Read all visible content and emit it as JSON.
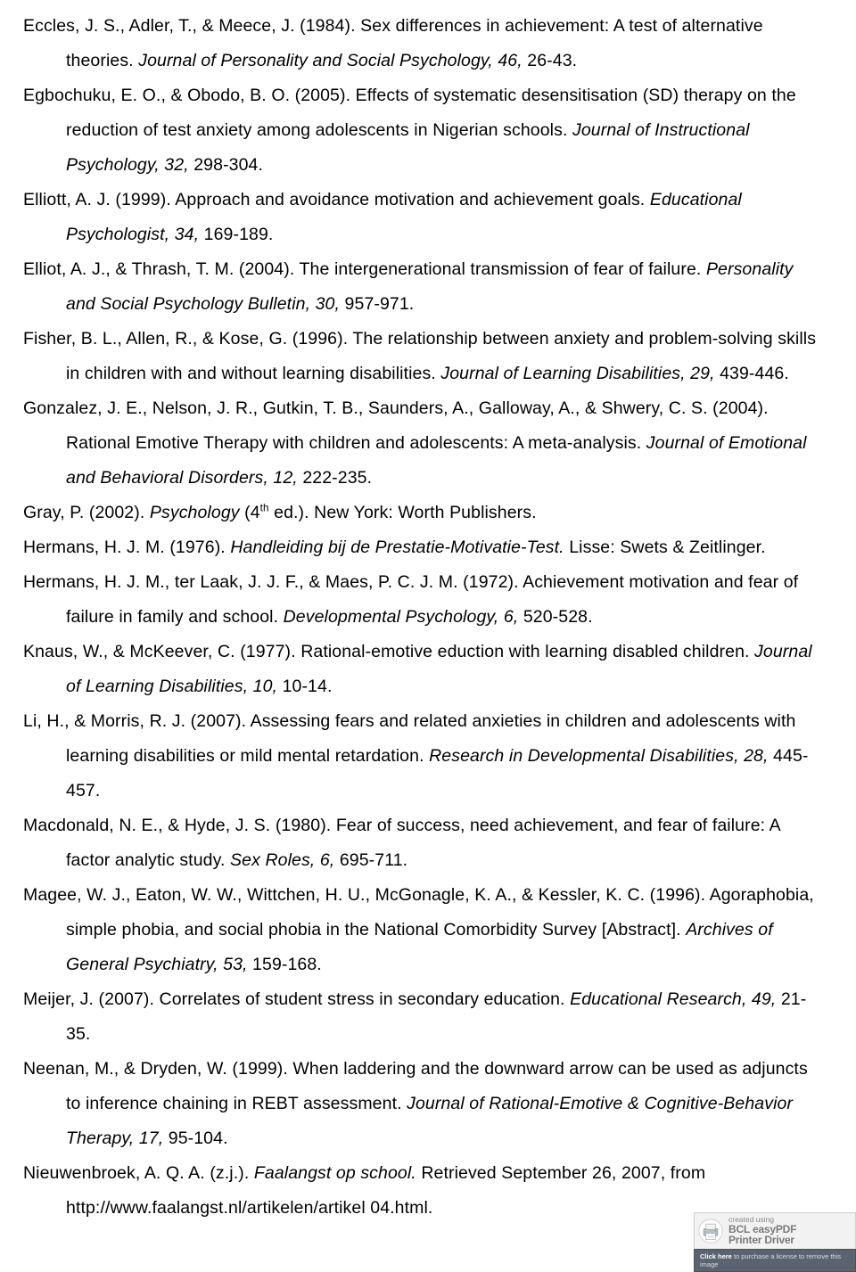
{
  "references": [
    {
      "pre": "Eccles, J. S., Adler, T., & Meece, J. (1984). Sex differences in achievement: A test of alternative theories. ",
      "italic": "Journal of Personality and Social Psychology, 46,",
      "post": " 26-43."
    },
    {
      "pre": "Egbochuku, E. O., & Obodo, B. O. (2005). Effects of systematic desensitisation (SD) therapy on the reduction of test anxiety among adolescents in Nigerian schools. ",
      "italic": "Journal of Instructional Psychology, 32,",
      "post": " 298-304."
    },
    {
      "pre": "Elliott, A. J. (1999). Approach and avoidance motivation and achievement goals. ",
      "italic": "Educational Psychologist, 34,",
      "post": " 169-189."
    },
    {
      "pre": "Elliot, A. J., & Thrash, T. M. (2004). The intergenerational transmission of fear of failure. ",
      "italic": "Personality and Social Psychology Bulletin, 30,",
      "post": " 957-971."
    },
    {
      "pre": "Fisher, B. L., Allen, R., & Kose, G. (1996). The relationship between anxiety and problem-solving skills in children with and without learning disabilities. ",
      "italic": "Journal of Learning Disabilities, 29,",
      "post": " 439-446."
    },
    {
      "pre": "Gonzalez, J. E., Nelson, J. R., Gutkin, T. B., Saunders, A., Galloway, A., & Shwery, C. S. (2004). Rational Emotive Therapy with children and adolescents: A meta-analysis. ",
      "italic": "Journal of Emotional and Behavioral Disorders, 12,",
      "post": " 222-235."
    },
    {
      "pre": "Gray, P. (2002). ",
      "italic": "Psychology",
      "post_complex": true,
      "post": " (4",
      "sup": "th",
      "post2": " ed.). New York: Worth Publishers."
    },
    {
      "pre": "Hermans, H. J. M. (1976). ",
      "italic": "Handleiding bij de Prestatie-Motivatie-Test.",
      "post": " Lisse: Swets & Zeitlinger."
    },
    {
      "pre": "Hermans, H. J. M., ter Laak, J. J. F., & Maes, P. C. J. M. (1972). Achievement motivation and fear of failure in family and school. ",
      "italic": "Developmental Psychology, 6,",
      "post": " 520-528."
    },
    {
      "pre": "Knaus, W., & McKeever, C. (1977). Rational-emotive eduction with learning disabled children. ",
      "italic": "Journal of Learning Disabilities, 10,",
      "post": " 10-14."
    },
    {
      "pre": "Li, H., & Morris, R. J. (2007). Assessing fears and related anxieties in children and adolescents with learning disabilities or mild mental retardation. ",
      "italic": "Research in Developmental Disabilities, 28,",
      "post": " 445-457."
    },
    {
      "pre": "Macdonald, N. E., & Hyde, J. S. (1980). Fear of success, need achievement, and fear of failure: A factor analytic study. ",
      "italic": "Sex Roles, 6,",
      "post": " 695-711."
    },
    {
      "pre": "Magee, W. J., Eaton, W. W., Wittchen, H. U., McGonagle, K. A., & Kessler, K. C. (1996). Agoraphobia, simple phobia, and social phobia in the National Comorbidity Survey [Abstract]. ",
      "italic": "Archives of General Psychiatry, 53,",
      "post": " 159-168."
    },
    {
      "pre": "Meijer, J. (2007). Correlates of student stress in secondary education. ",
      "italic": "Educational Research, 49,",
      "post": " 21-35."
    },
    {
      "pre": "Neenan, M., & Dryden, W. (1999). When laddering and the downward arrow can be used as adjuncts to inference chaining in REBT assessment. ",
      "italic": "Journal of Rational-Emotive & Cognitive-Behavior Therapy, 17,",
      "post": " 95-104."
    },
    {
      "pre": "Nieuwenbroek, A. Q. A. (z.j.). ",
      "italic": "Faalangst op school.",
      "post": " Retrieved September 26, 2007, from http://www.faalangst.nl/artikelen/artikel 04.html."
    }
  ],
  "watermark": {
    "created": "created using",
    "brand1": "BCL easyPDF",
    "brand2": "Printer Driver",
    "click": "Click here",
    "tail": " to purchase a license to remove this image"
  }
}
